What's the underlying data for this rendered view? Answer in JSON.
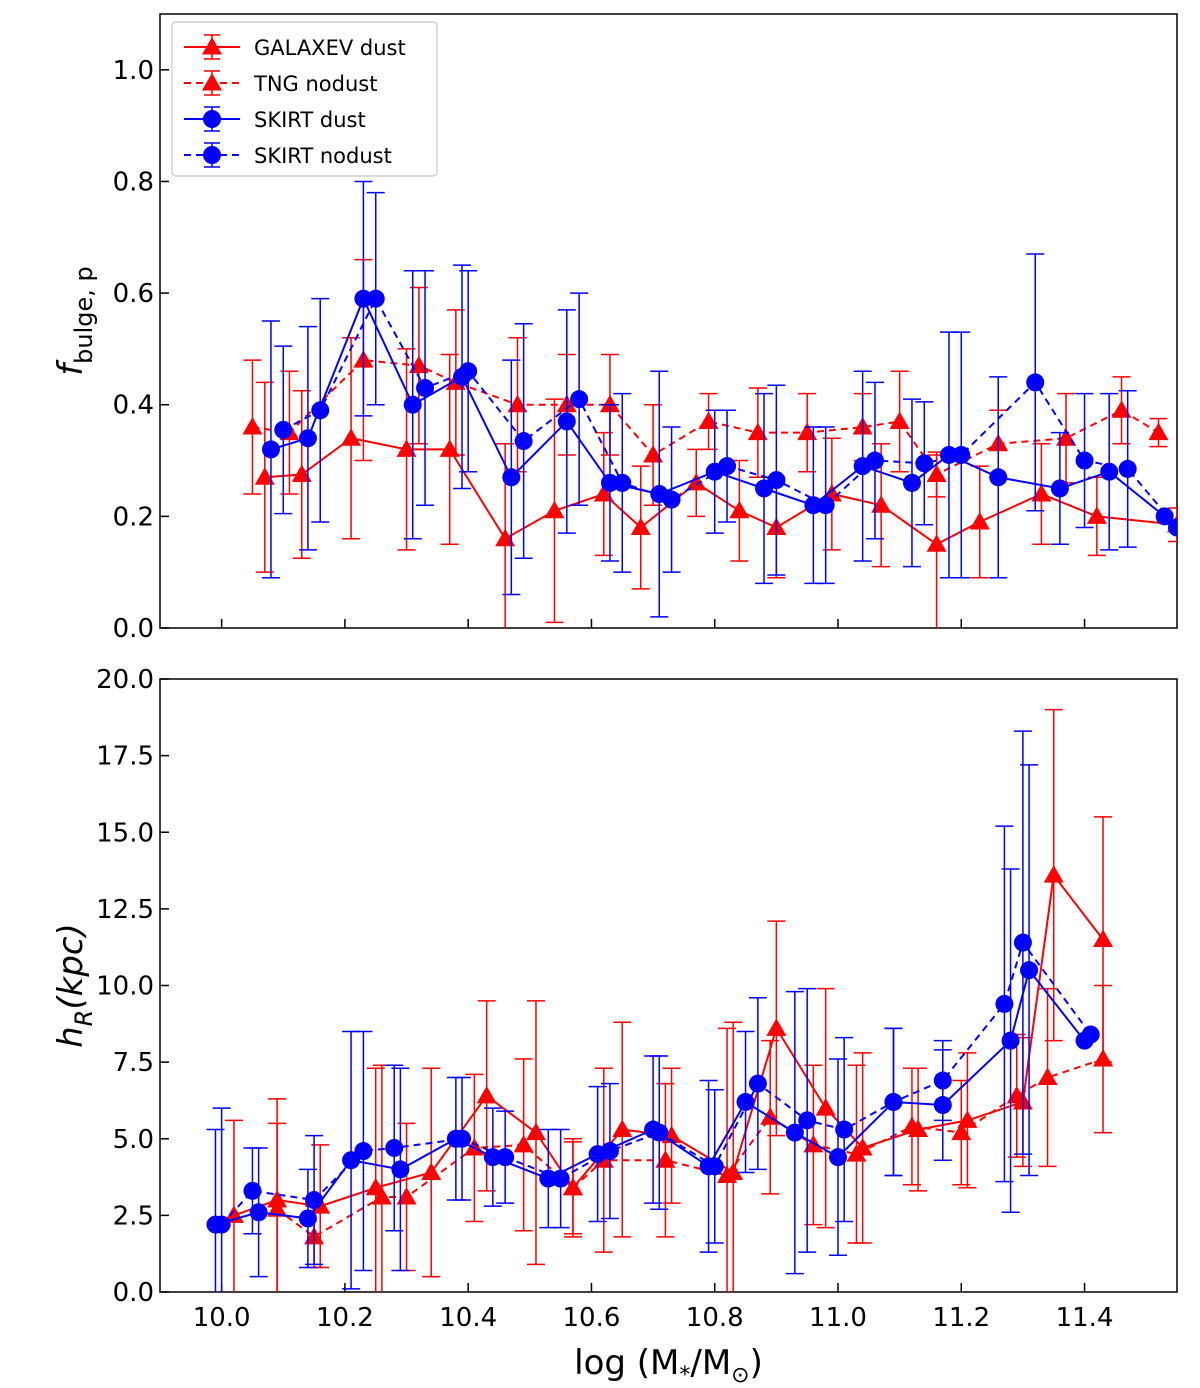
{
  "colors": {
    "red": "#ff0000",
    "blue": "#0000ff"
  },
  "legend": {
    "items": [
      {
        "label": "GALAXEV dust",
        "series": "galaxev_dust"
      },
      {
        "label": "TNG nodust",
        "series": "tng_nodust"
      },
      {
        "label": "SKIRT dust",
        "series": "skirt_dust"
      },
      {
        "label": "SKIRT nodust",
        "series": "skirt_nodust"
      }
    ]
  },
  "chart_data": [
    {
      "type": "line",
      "panel": "top",
      "ylabel_main": "f",
      "ylabel_sub": "bulge, p",
      "xlim": [
        9.9,
        11.55
      ],
      "ylim": [
        0.0,
        1.1
      ],
      "xticks": [
        10.0,
        10.2,
        10.4,
        10.6,
        10.8,
        11.0,
        11.2,
        11.4
      ],
      "yticks": [
        "0.0",
        "0.2",
        "0.4",
        "0.6",
        "0.8",
        "1.0"
      ],
      "ytick_values": [
        0.0,
        0.2,
        0.4,
        0.6,
        0.8,
        1.0
      ],
      "legend_location": "top-left",
      "series": [
        {
          "name": "GALAXEV dust",
          "key": "galaxev_dust",
          "color": "red",
          "marker": "triangle",
          "dashed": false,
          "points": [
            [
              10.07,
              0.27,
              0.17
            ],
            [
              10.13,
              0.275,
              0.15
            ],
            [
              10.21,
              0.34,
              0.18
            ],
            [
              10.3,
              0.32,
              0.18
            ],
            [
              10.37,
              0.32,
              0.17
            ],
            [
              10.46,
              0.16,
              0.17
            ],
            [
              10.54,
              0.21,
              0.2
            ],
            [
              10.62,
              0.24,
              0.11
            ],
            [
              10.68,
              0.18,
              0.11
            ],
            [
              10.77,
              0.26,
              0.06
            ],
            [
              10.84,
              0.21,
              0.09
            ],
            [
              10.9,
              0.18,
              0.09
            ],
            [
              10.99,
              0.24,
              0.1
            ],
            [
              11.07,
              0.22,
              0.11
            ],
            [
              11.16,
              0.15,
              0.16
            ],
            [
              11.23,
              0.19,
              0.1
            ],
            [
              11.33,
              0.24,
              0.09
            ],
            [
              11.42,
              0.2,
              0.07
            ],
            [
              11.55,
              0.185,
              0.03
            ]
          ]
        },
        {
          "name": "TNG nodust",
          "key": "tng_nodust",
          "color": "red",
          "marker": "triangle",
          "dashed": true,
          "points": [
            [
              10.05,
              0.36,
              0.12
            ],
            [
              10.11,
              0.35,
              0.11
            ],
            [
              10.23,
              0.48,
              0.18
            ],
            [
              10.32,
              0.47,
              0.14
            ],
            [
              10.38,
              0.44,
              0.13
            ],
            [
              10.48,
              0.4,
              0.12
            ],
            [
              10.56,
              0.4,
              0.09
            ],
            [
              10.63,
              0.4,
              0.09
            ],
            [
              10.7,
              0.31,
              0.09
            ],
            [
              10.79,
              0.37,
              0.05
            ],
            [
              10.87,
              0.35,
              0.08
            ],
            [
              10.95,
              0.35,
              0.07
            ],
            [
              11.04,
              0.36,
              0.06
            ],
            [
              11.1,
              0.37,
              0.09
            ],
            [
              11.16,
              0.275,
              0.04
            ],
            [
              11.26,
              0.33,
              0.06
            ],
            [
              11.37,
              0.34,
              0.08
            ],
            [
              11.46,
              0.39,
              0.06
            ],
            [
              11.52,
              0.35,
              0.025
            ]
          ]
        },
        {
          "name": "SKIRT dust",
          "key": "skirt_dust",
          "color": "blue",
          "marker": "circle",
          "dashed": false,
          "points": [
            [
              10.08,
              0.32,
              0.23
            ],
            [
              10.14,
              0.34,
              0.2
            ],
            [
              10.23,
              0.59,
              0.21
            ],
            [
              10.31,
              0.4,
              0.24
            ],
            [
              10.39,
              0.45,
              0.2
            ],
            [
              10.47,
              0.27,
              0.21
            ],
            [
              10.56,
              0.37,
              0.2
            ],
            [
              10.63,
              0.26,
              0.14
            ],
            [
              10.71,
              0.24,
              0.22
            ],
            [
              10.8,
              0.28,
              0.11
            ],
            [
              10.88,
              0.25,
              0.17
            ],
            [
              10.96,
              0.22,
              0.14
            ],
            [
              11.04,
              0.29,
              0.17
            ],
            [
              11.12,
              0.26,
              0.15
            ],
            [
              11.18,
              0.31,
              0.22
            ],
            [
              11.26,
              0.27,
              0.18
            ],
            [
              11.36,
              0.25,
              0.1
            ],
            [
              11.44,
              0.28,
              0.14
            ],
            [
              11.53,
              0.2,
              0.0
            ]
          ]
        },
        {
          "name": "SKIRT nodust",
          "key": "skirt_nodust",
          "color": "blue",
          "marker": "circle",
          "dashed": true,
          "points": [
            [
              10.1,
              0.355,
              0.15
            ],
            [
              10.16,
              0.39,
              0.2
            ],
            [
              10.25,
              0.59,
              0.19
            ],
            [
              10.33,
              0.43,
              0.21
            ],
            [
              10.4,
              0.46,
              0.18
            ],
            [
              10.49,
              0.335,
              0.21
            ],
            [
              10.58,
              0.41,
              0.19
            ],
            [
              10.65,
              0.26,
              0.16
            ],
            [
              10.73,
              0.23,
              0.13
            ],
            [
              10.82,
              0.29,
              0.1
            ],
            [
              10.9,
              0.265,
              0.17
            ],
            [
              10.98,
              0.22,
              0.14
            ],
            [
              11.06,
              0.3,
              0.14
            ],
            [
              11.14,
              0.295,
              0.11
            ],
            [
              11.2,
              0.31,
              0.22
            ],
            [
              11.32,
              0.44,
              0.23
            ],
            [
              11.4,
              0.3,
              0.12
            ],
            [
              11.47,
              0.285,
              0.14
            ],
            [
              11.55,
              0.18,
              0.0
            ]
          ]
        }
      ]
    },
    {
      "type": "line",
      "panel": "bottom",
      "xlabel": "log (M",
      "xlabel_sub": "*",
      "xlabel_mid": "/M",
      "xlabel_sub2": "⊙",
      "xlabel_end": ")",
      "ylabel_main": "h",
      "ylabel_sub": "R",
      "ylabel_end": "(kpc)",
      "xlim": [
        9.9,
        11.55
      ],
      "ylim": [
        0.0,
        20.0
      ],
      "xticks": [
        10.0,
        10.2,
        10.4,
        10.6,
        10.8,
        11.0,
        11.2,
        11.4
      ],
      "xtick_labels": [
        "10.0",
        "10.2",
        "10.4",
        "10.6",
        "10.8",
        "11.0",
        "11.2",
        "11.4"
      ],
      "yticks": [
        "0.0",
        "2.5",
        "5.0",
        "7.5",
        "10.0",
        "12.5",
        "15.0",
        "17.5",
        "20.0"
      ],
      "ytick_values": [
        0.0,
        2.5,
        5.0,
        7.5,
        10.0,
        12.5,
        15.0,
        17.5,
        20.0
      ],
      "series": [
        {
          "name": "GALAXEV dust",
          "key": "galaxev_dust",
          "color": "red",
          "marker": "triangle",
          "dashed": false,
          "points": [
            [
              10.02,
              2.5,
              3.1
            ],
            [
              10.09,
              3.0,
              3.3
            ],
            [
              10.16,
              2.8,
              2.0
            ],
            [
              10.25,
              3.4,
              3.9
            ],
            [
              10.34,
              3.9,
              3.4
            ],
            [
              10.43,
              6.4,
              3.1
            ],
            [
              10.51,
              5.2,
              4.3
            ],
            [
              10.57,
              3.4,
              1.6
            ],
            [
              10.65,
              5.3,
              3.5
            ],
            [
              10.73,
              5.1,
              2.2
            ],
            [
              10.83,
              3.9,
              4.9
            ],
            [
              10.9,
              8.6,
              3.5
            ],
            [
              10.98,
              6.0,
              3.9
            ],
            [
              11.04,
              4.7,
              3.1
            ],
            [
              11.13,
              5.3,
              2.0
            ],
            [
              11.21,
              5.6,
              2.2
            ],
            [
              11.3,
              6.2,
              2.1
            ],
            [
              11.35,
              13.6,
              5.4
            ],
            [
              11.43,
              11.5,
              4.0
            ]
          ]
        },
        {
          "name": "TNG nodust",
          "key": "tng_nodust",
          "color": "red",
          "marker": "triangle",
          "dashed": true,
          "points": [
            [
              10.09,
              2.7,
              2.8
            ],
            [
              10.15,
              1.8,
              1.0
            ],
            [
              10.26,
              3.1,
              4.3
            ],
            [
              10.3,
              3.1,
              2.4
            ],
            [
              10.41,
              4.7,
              2.4
            ],
            [
              10.49,
              4.8,
              2.8
            ],
            [
              10.57,
              3.4,
              1.5
            ],
            [
              10.62,
              4.3,
              3.0
            ],
            [
              10.72,
              4.3,
              2.5
            ],
            [
              10.82,
              3.8,
              4.8
            ],
            [
              10.89,
              5.7,
              2.5
            ],
            [
              10.96,
              4.8,
              2.6
            ],
            [
              11.03,
              4.5,
              2.9
            ],
            [
              11.12,
              5.4,
              1.9
            ],
            [
              11.2,
              5.2,
              1.7
            ],
            [
              11.29,
              6.4,
              2.0
            ],
            [
              11.34,
              7.0,
              2.9
            ],
            [
              11.43,
              7.6,
              2.4
            ]
          ]
        },
        {
          "name": "SKIRT dust",
          "key": "skirt_dust",
          "color": "blue",
          "marker": "circle",
          "dashed": false,
          "points": [
            [
              9.99,
              2.2,
              3.1
            ],
            [
              10.06,
              2.6,
              2.1
            ],
            [
              10.14,
              2.4,
              1.6
            ],
            [
              10.21,
              4.3,
              4.2
            ],
            [
              10.29,
              4.0,
              3.3
            ],
            [
              10.38,
              5.0,
              2.0
            ],
            [
              10.44,
              4.4,
              1.6
            ],
            [
              10.53,
              3.7,
              1.6
            ],
            [
              10.61,
              4.5,
              2.2
            ],
            [
              10.7,
              5.3,
              2.4
            ],
            [
              10.79,
              4.1,
              2.8
            ],
            [
              10.85,
              6.2,
              2.3
            ],
            [
              10.93,
              5.2,
              4.6
            ],
            [
              11.0,
              4.4,
              3.2
            ],
            [
              11.09,
              6.2,
              2.4
            ],
            [
              11.17,
              6.1,
              1.8
            ],
            [
              11.28,
              8.2,
              5.6
            ],
            [
              11.31,
              10.5,
              6.7
            ],
            [
              11.4,
              8.2,
              0.0
            ]
          ]
        },
        {
          "name": "SKIRT nodust",
          "key": "skirt_nodust",
          "color": "blue",
          "marker": "circle",
          "dashed": true,
          "points": [
            [
              10.0,
              2.2,
              3.8
            ],
            [
              10.05,
              3.3,
              1.4
            ],
            [
              10.15,
              3.0,
              2.1
            ],
            [
              10.23,
              4.6,
              3.9
            ],
            [
              10.28,
              4.7,
              2.7
            ],
            [
              10.39,
              5.0,
              2.0
            ],
            [
              10.46,
              4.4,
              1.5
            ],
            [
              10.55,
              3.7,
              1.6
            ],
            [
              10.63,
              4.6,
              2.2
            ],
            [
              10.71,
              5.2,
              2.5
            ],
            [
              10.8,
              4.1,
              2.5
            ],
            [
              10.87,
              6.8,
              2.8
            ],
            [
              10.95,
              5.6,
              4.3
            ],
            [
              11.01,
              5.3,
              3.0
            ],
            [
              11.09,
              6.2,
              2.4
            ],
            [
              11.17,
              6.9,
              1.3
            ],
            [
              11.27,
              9.4,
              5.8
            ],
            [
              11.3,
              11.4,
              6.9
            ],
            [
              11.41,
              8.4,
              0.0
            ]
          ]
        }
      ]
    }
  ]
}
